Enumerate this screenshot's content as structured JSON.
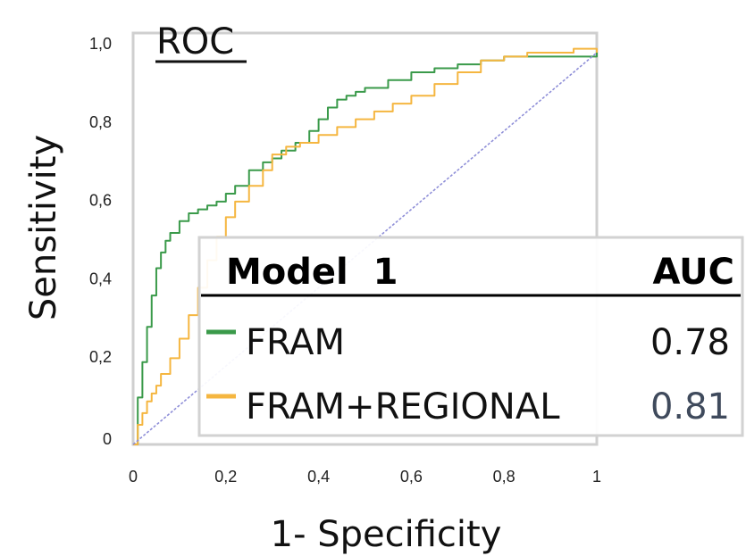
{
  "chart_data": {
    "type": "line",
    "title": "ROC",
    "xlabel": "1- Specificity",
    "ylabel": "Sensitivity",
    "xlim": [
      0,
      1
    ],
    "ylim": [
      0,
      1
    ],
    "x_ticks": [
      "0",
      "0,2",
      "0,4",
      "0,6",
      "0,8",
      "1"
    ],
    "y_ticks": [
      "0",
      "0,2",
      "0,4",
      "0,6",
      "0,8",
      "1,0"
    ],
    "grid": false,
    "legend": {
      "placement": "right",
      "header_model": "Model  1",
      "header_auc": "AUC",
      "entries": [
        {
          "label": "FRAM",
          "auc": "0.78",
          "color": "#3a9a4a"
        },
        {
          "label": "FRAM+REGIONAL",
          "auc": "0.81",
          "color": "#f5b640"
        }
      ]
    },
    "series": [
      {
        "name": "FRAM",
        "color": "#3a9a4a",
        "x": [
          0,
          0.01,
          0.02,
          0.03,
          0.04,
          0.05,
          0.06,
          0.07,
          0.08,
          0.1,
          0.12,
          0.14,
          0.16,
          0.18,
          0.2,
          0.22,
          0.25,
          0.28,
          0.3,
          0.32,
          0.35,
          0.38,
          0.4,
          0.42,
          0.44,
          0.46,
          0.48,
          0.5,
          0.55,
          0.6,
          0.65,
          0.7,
          0.75,
          0.8,
          0.85,
          0.9,
          0.95,
          1.0
        ],
        "y": [
          0,
          0.12,
          0.21,
          0.3,
          0.38,
          0.45,
          0.49,
          0.52,
          0.54,
          0.57,
          0.59,
          0.6,
          0.61,
          0.62,
          0.64,
          0.66,
          0.7,
          0.72,
          0.73,
          0.75,
          0.77,
          0.8,
          0.83,
          0.86,
          0.88,
          0.89,
          0.9,
          0.91,
          0.93,
          0.95,
          0.96,
          0.97,
          0.98,
          0.99,
          0.99,
          0.99,
          0.99,
          1.0
        ]
      },
      {
        "name": "FRAM+REGIONAL",
        "color": "#f5b640",
        "x": [
          0,
          0.01,
          0.02,
          0.03,
          0.04,
          0.05,
          0.06,
          0.08,
          0.1,
          0.12,
          0.14,
          0.16,
          0.18,
          0.2,
          0.22,
          0.25,
          0.28,
          0.3,
          0.33,
          0.36,
          0.4,
          0.44,
          0.48,
          0.52,
          0.56,
          0.6,
          0.65,
          0.7,
          0.75,
          0.8,
          0.85,
          0.9,
          0.95,
          1.0
        ],
        "y": [
          0,
          0.05,
          0.08,
          0.11,
          0.13,
          0.15,
          0.18,
          0.22,
          0.27,
          0.33,
          0.4,
          0.47,
          0.53,
          0.58,
          0.62,
          0.66,
          0.7,
          0.74,
          0.76,
          0.77,
          0.79,
          0.81,
          0.83,
          0.85,
          0.87,
          0.89,
          0.92,
          0.95,
          0.98,
          0.99,
          1.0,
          1.0,
          1.01,
          1.0
        ]
      },
      {
        "name": "",
        "color": "#8f8fd8",
        "x": [
          0,
          1
        ],
        "y": [
          0,
          1
        ]
      }
    ]
  }
}
